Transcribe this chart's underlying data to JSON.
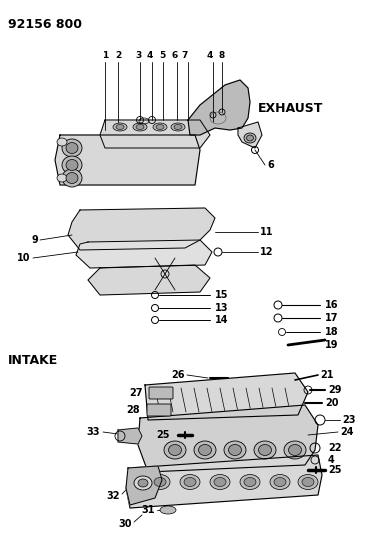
{
  "title": "92156 800",
  "exhaust_label": "EXHAUST",
  "intake_label": "INTAKE",
  "bg_color": "#ffffff",
  "line_color": "#000000",
  "fill_light": "#d8d8d8",
  "fill_mid": "#bbbbbb",
  "fill_dark": "#999999",
  "figsize": [
    3.83,
    5.33
  ],
  "dpi": 100
}
